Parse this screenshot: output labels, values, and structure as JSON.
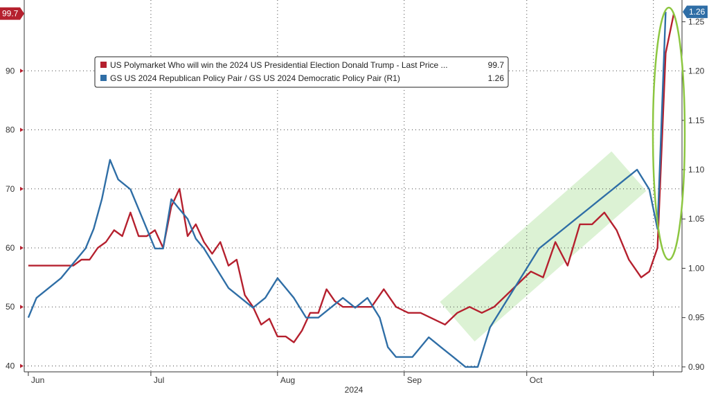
{
  "chart_data": {
    "type": "line",
    "xlabel": "2024",
    "x_ticks": [
      "Jun",
      "Jul",
      "Aug",
      "Sep",
      "Oct"
    ],
    "y_left": {
      "ticks": [
        40,
        50,
        60,
        70,
        80,
        90
      ],
      "range": [
        39,
        102
      ],
      "last_label": "99.7"
    },
    "y_right": {
      "ticks": [
        "0.90",
        "0.95",
        "1.00",
        "1.05",
        "1.10",
        "1.15",
        "1.20",
        "1.25"
      ],
      "range": [
        0.895,
        1.272
      ],
      "last_label": "1.26"
    },
    "grid": true,
    "legend_position": "top-left",
    "series": [
      {
        "name": "US Polymarket Who will win the 2024 US Presidential Election Donald Trump - Last Price ...",
        "axis": "left",
        "color": "#b5202e",
        "last_value": "99.7",
        "x": [
          "2024-06-01",
          "2024-06-05",
          "2024-06-09",
          "2024-06-12",
          "2024-06-14",
          "2024-06-16",
          "2024-06-18",
          "2024-06-20",
          "2024-06-22",
          "2024-06-24",
          "2024-06-26",
          "2024-06-28",
          "2024-06-30",
          "2024-07-02",
          "2024-07-04",
          "2024-07-06",
          "2024-07-08",
          "2024-07-10",
          "2024-07-12",
          "2024-07-14",
          "2024-07-16",
          "2024-07-18",
          "2024-07-20",
          "2024-07-22",
          "2024-07-24",
          "2024-07-26",
          "2024-07-28",
          "2024-07-30",
          "2024-08-01",
          "2024-08-03",
          "2024-08-05",
          "2024-08-07",
          "2024-08-09",
          "2024-08-11",
          "2024-08-13",
          "2024-08-15",
          "2024-08-17",
          "2024-08-19",
          "2024-08-21",
          "2024-08-24",
          "2024-08-27",
          "2024-08-30",
          "2024-09-02",
          "2024-09-05",
          "2024-09-08",
          "2024-09-11",
          "2024-09-14",
          "2024-09-17",
          "2024-09-20",
          "2024-09-23",
          "2024-09-26",
          "2024-09-29",
          "2024-10-02",
          "2024-10-05",
          "2024-10-08",
          "2024-10-11",
          "2024-10-14",
          "2024-10-17",
          "2024-10-20",
          "2024-10-23",
          "2024-10-26",
          "2024-10-29",
          "2024-10-31",
          "2024-11-02",
          "2024-11-04",
          "2024-11-06"
        ],
        "values": [
          57,
          57,
          57,
          57,
          58,
          58,
          60,
          61,
          63,
          62,
          66,
          62,
          62,
          63,
          60,
          67,
          70,
          62,
          64,
          61,
          59,
          61,
          57,
          58,
          52,
          50,
          47,
          48,
          45,
          45,
          44,
          46,
          49,
          49,
          53,
          51,
          50,
          50,
          50,
          50,
          53,
          50,
          49,
          49,
          48,
          47,
          49,
          50,
          49,
          50,
          52,
          54,
          56,
          55,
          61,
          57,
          64,
          64,
          66,
          63,
          58,
          55,
          56,
          60,
          93,
          99.7
        ]
      },
      {
        "name": "GS US 2024 Republican Policy Pair / GS US 2024 Democratic Policy Pair (R1)",
        "axis": "right",
        "color": "#2f6ea6",
        "last_value": "1.26",
        "x": [
          "2024-06-01",
          "2024-06-03",
          "2024-06-06",
          "2024-06-09",
          "2024-06-11",
          "2024-06-13",
          "2024-06-15",
          "2024-06-17",
          "2024-06-19",
          "2024-06-21",
          "2024-06-23",
          "2024-06-26",
          "2024-06-29",
          "2024-07-02",
          "2024-07-04",
          "2024-07-06",
          "2024-07-08",
          "2024-07-10",
          "2024-07-12",
          "2024-07-14",
          "2024-07-17",
          "2024-07-20",
          "2024-07-23",
          "2024-07-26",
          "2024-07-29",
          "2024-08-01",
          "2024-08-03",
          "2024-08-05",
          "2024-08-08",
          "2024-08-11",
          "2024-08-14",
          "2024-08-17",
          "2024-08-20",
          "2024-08-23",
          "2024-08-26",
          "2024-08-28",
          "2024-08-30",
          "2024-09-01",
          "2024-09-03",
          "2024-09-05",
          "2024-09-07",
          "2024-09-10",
          "2024-09-13",
          "2024-09-16",
          "2024-09-19",
          "2024-09-22",
          "2024-09-25",
          "2024-09-28",
          "2024-10-01",
          "2024-10-04",
          "2024-10-07",
          "2024-10-10",
          "2024-10-13",
          "2024-10-16",
          "2024-10-19",
          "2024-10-22",
          "2024-10-25",
          "2024-10-28",
          "2024-10-31",
          "2024-11-02",
          "2024-11-04"
        ],
        "values": [
          0.95,
          0.97,
          0.98,
          0.99,
          1.0,
          1.01,
          1.02,
          1.04,
          1.07,
          1.11,
          1.09,
          1.08,
          1.05,
          1.02,
          1.02,
          1.07,
          1.06,
          1.05,
          1.03,
          1.02,
          1.0,
          0.98,
          0.97,
          0.96,
          0.97,
          0.99,
          0.98,
          0.97,
          0.95,
          0.95,
          0.96,
          0.97,
          0.96,
          0.97,
          0.95,
          0.92,
          0.91,
          0.91,
          0.91,
          0.92,
          0.93,
          0.92,
          0.91,
          0.9,
          0.9,
          0.94,
          0.96,
          0.98,
          1.0,
          1.02,
          1.03,
          1.04,
          1.05,
          1.06,
          1.07,
          1.08,
          1.09,
          1.1,
          1.08,
          1.04,
          1.26
        ]
      }
    ],
    "last_value_badges": {
      "left": "99.7",
      "right": "1.26"
    }
  }
}
